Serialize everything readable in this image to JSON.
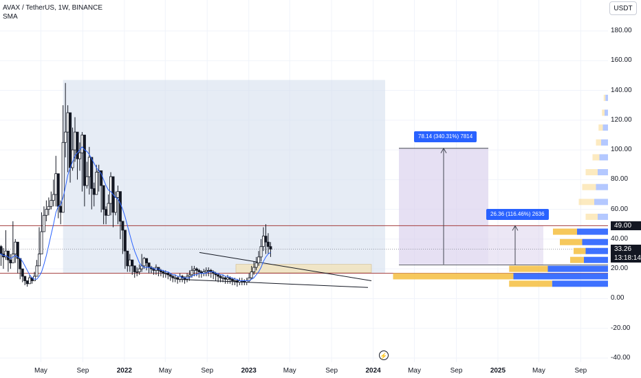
{
  "header": {
    "symbol_line": "AVAX / TetherUS, 1W, BINANCE",
    "indicator": "SMA",
    "currency": "USDT"
  },
  "colors": {
    "up": "#089981",
    "candle": "#131722",
    "sma": "#2962ff",
    "resistance": "#a33b3b",
    "zone": "#d6e0ee",
    "measure": "#d9d0ec",
    "vp_up": "#f5c24a",
    "vp_down": "#2962ff"
  },
  "chart_data": {
    "type": "candlestick",
    "yaxis": {
      "ticks": [
        "180.00",
        "160.00",
        "140.00",
        "120.00",
        "100.00",
        "80.00",
        "60.00",
        "40.00",
        "20.00",
        "0.00",
        "-20.00",
        "-40.00"
      ],
      "tick_values": [
        180,
        160,
        140,
        120,
        100,
        80,
        60,
        40,
        20,
        0,
        -20,
        -40
      ],
      "ylim": [
        -40,
        180
      ]
    },
    "xaxis": {
      "labels": [
        {
          "text": "May",
          "bold": false
        },
        {
          "text": "Sep",
          "bold": false
        },
        {
          "text": "2022",
          "bold": true
        },
        {
          "text": "May",
          "bold": false
        },
        {
          "text": "Sep",
          "bold": false
        },
        {
          "text": "2023",
          "bold": true
        },
        {
          "text": "May",
          "bold": false
        },
        {
          "text": "Sep",
          "bold": false
        },
        {
          "text": "2024",
          "bold": true
        },
        {
          "text": "May",
          "bold": false
        },
        {
          "text": "Sep",
          "bold": false
        },
        {
          "text": "2025",
          "bold": true
        },
        {
          "text": "May",
          "bold": false
        },
        {
          "text": "Sep",
          "bold": false
        }
      ],
      "label_dates": [
        "2021-05",
        "2021-09",
        "2022-01",
        "2022-05",
        "2022-09",
        "2023-01",
        "2023-05",
        "2023-09",
        "2024-01",
        "2024-05",
        "2024-09",
        "2025-01",
        "2025-05",
        "2025-09"
      ],
      "xlim": [
        "2021-01-01",
        "2025-11-20"
      ]
    },
    "price_levels": [
      {
        "label": "49.00",
        "value": 49.0,
        "style": "horizontal"
      },
      {
        "label": "33.26",
        "value": 33.26,
        "style": "last-price"
      },
      {
        "label": "13:18:14",
        "value": 27.5,
        "style": "countdown"
      }
    ],
    "support_level": 17.0,
    "weekly_close": [
      35,
      30,
      28,
      32,
      26,
      24,
      30,
      38,
      27,
      20,
      15,
      12,
      10,
      14,
      12,
      15,
      22,
      30,
      45,
      56,
      60,
      62,
      66,
      70,
      84,
      62,
      58,
      105,
      112,
      125,
      88,
      100,
      112,
      94,
      98,
      110,
      76,
      82,
      95,
      74,
      70,
      85,
      86,
      76,
      60,
      56,
      64,
      82,
      58,
      68,
      72,
      52,
      46,
      32,
      22,
      26,
      22,
      18,
      18,
      20,
      22,
      27,
      24,
      21,
      20,
      19,
      21,
      19,
      18,
      17,
      17,
      16,
      15,
      14,
      14,
      13,
      15,
      14,
      13,
      15,
      16,
      19,
      20,
      19,
      18,
      17,
      18,
      19,
      19,
      18,
      17,
      16,
      15,
      14,
      14,
      13,
      14,
      13,
      12,
      12,
      11,
      12,
      12,
      11,
      12,
      14,
      18,
      21,
      24,
      28,
      35,
      42,
      38,
      35,
      33.26
    ],
    "weekly_high": [
      48,
      36,
      34,
      46,
      32,
      30,
      52,
      40,
      32,
      24,
      18,
      14,
      12,
      16,
      14,
      18,
      26,
      48,
      58,
      62,
      66,
      68,
      72,
      80,
      96,
      70,
      66,
      130,
      145,
      130,
      105,
      115,
      122,
      100,
      105,
      112,
      85,
      92,
      102,
      78,
      78,
      90,
      90,
      80,
      66,
      62,
      70,
      85,
      63,
      72,
      76,
      58,
      50,
      36,
      26,
      30,
      25,
      20,
      21,
      23,
      30,
      28,
      26,
      23,
      22,
      21,
      23,
      21,
      20,
      19,
      19,
      18,
      17,
      16,
      16,
      15,
      17,
      16,
      15,
      17,
      19,
      22,
      22,
      21,
      20,
      19,
      20,
      21,
      21,
      20,
      19,
      18,
      17,
      16,
      16,
      15,
      16,
      15,
      14,
      14,
      13,
      14,
      14,
      13,
      14,
      17,
      22,
      25,
      28,
      32,
      40,
      48,
      50,
      44,
      38
    ],
    "weekly_low": [
      20,
      22,
      20,
      26,
      18,
      20,
      24,
      24,
      17,
      13,
      11,
      9,
      8,
      10,
      10,
      12,
      18,
      26,
      38,
      48,
      52,
      56,
      60,
      62,
      62,
      54,
      50,
      70,
      95,
      85,
      78,
      86,
      92,
      80,
      86,
      72,
      62,
      74,
      70,
      60,
      62,
      70,
      72,
      58,
      50,
      50,
      56,
      56,
      48,
      56,
      50,
      40,
      30,
      20,
      18,
      18,
      16,
      14,
      15,
      16,
      18,
      20,
      19,
      17,
      17,
      16,
      16,
      15,
      15,
      14,
      14,
      13,
      12,
      11,
      11,
      10,
      11,
      11,
      10,
      11,
      12,
      14,
      15,
      15,
      14,
      14,
      15,
      15,
      15,
      14,
      13,
      12,
      11,
      11,
      11,
      10,
      10,
      10,
      9,
      9,
      8,
      9,
      9,
      9,
      9,
      11,
      13,
      16,
      19,
      22,
      25,
      32,
      30,
      30,
      28
    ],
    "sma_values": [
      30,
      30,
      29,
      29,
      28,
      27,
      28,
      29,
      28,
      27,
      25,
      22,
      19,
      16,
      14,
      13,
      13,
      15,
      18,
      23,
      29,
      36,
      43,
      50,
      58,
      62,
      63,
      68,
      75,
      83,
      88,
      92,
      96,
      98,
      100,
      102,
      100,
      99,
      97,
      94,
      91,
      88,
      86,
      84,
      80,
      76,
      73,
      72,
      70,
      68,
      67,
      64,
      60,
      55,
      49,
      43,
      37,
      32,
      28,
      24,
      22,
      21,
      21,
      21,
      21,
      20,
      20,
      20,
      19,
      19,
      18,
      18,
      17,
      16,
      16,
      15,
      15,
      14,
      14,
      14,
      14,
      15,
      16,
      16,
      17,
      17,
      17,
      17,
      18,
      18,
      18,
      17,
      17,
      16,
      16,
      15,
      15,
      14,
      14,
      13,
      13,
      12,
      12,
      12,
      12,
      12,
      13,
      14,
      16,
      18,
      21,
      25,
      28,
      30,
      31
    ],
    "measure_1": {
      "label": "78.14 (340.31%) 7814",
      "from": 22.96,
      "to": 101.1
    },
    "measure_2": {
      "label": "26.36 (116.46%) 2636",
      "from": 22.6,
      "to": 49.0
    },
    "volume_profile": [
      {
        "price": 135,
        "up": 0.2,
        "down": 0.3
      },
      {
        "price": 125,
        "up": 0.3,
        "down": 0.4
      },
      {
        "price": 115,
        "up": 0.5,
        "down": 0.6
      },
      {
        "price": 105,
        "up": 0.6,
        "down": 0.8
      },
      {
        "price": 95,
        "up": 0.8,
        "down": 1.0
      },
      {
        "price": 85,
        "up": 1.4,
        "down": 1.2
      },
      {
        "price": 75,
        "up": 1.6,
        "down": 1.4
      },
      {
        "price": 65,
        "up": 1.8,
        "down": 1.6
      },
      {
        "price": 55,
        "up": 1.4,
        "down": 1.2
      },
      {
        "price": 45,
        "up": 2.8,
        "down": 3.6
      },
      {
        "price": 38,
        "up": 2.6,
        "down": 3.0
      },
      {
        "price": 32,
        "up": 1.4,
        "down": 2.6
      },
      {
        "price": 26,
        "up": 1.6,
        "down": 2.8
      },
      {
        "price": 20,
        "up": 4.5,
        "down": 7.0
      },
      {
        "price": 15,
        "up": 14.0,
        "down": 11.0
      },
      {
        "price": 10,
        "up": 5.0,
        "down": 6.5
      }
    ]
  }
}
